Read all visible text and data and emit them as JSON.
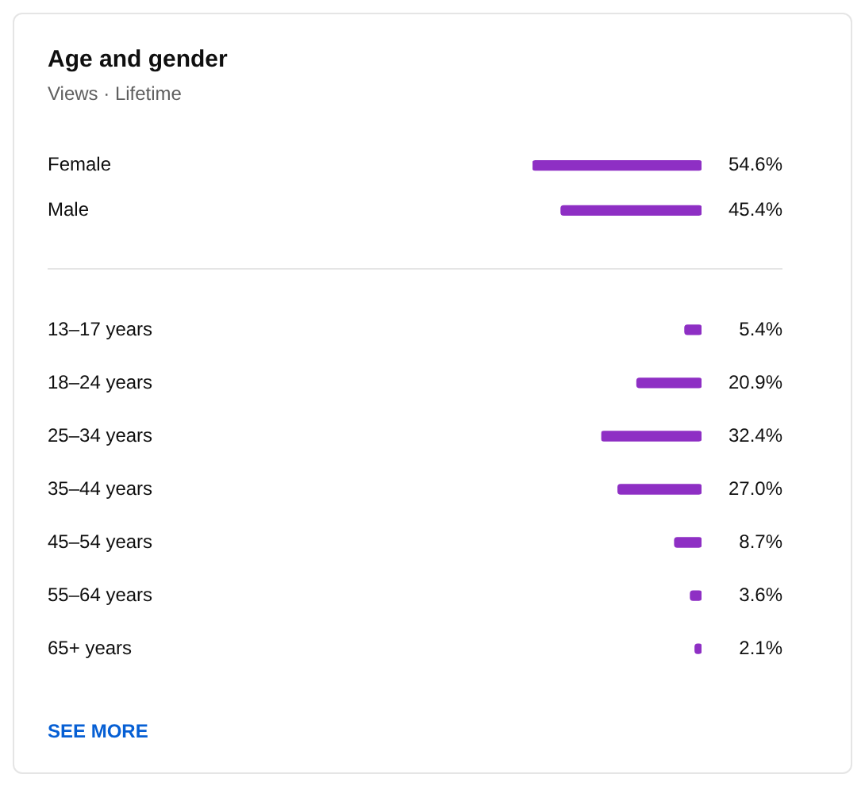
{
  "chart_data": [
    {
      "type": "bar",
      "orientation": "horizontal",
      "title": "Age and gender",
      "subtitle": "Views · Lifetime",
      "categories": [
        "Female",
        "Male"
      ],
      "values": [
        54.6,
        45.4
      ],
      "color": "#8e2fc4",
      "value_labels": [
        "54.6%",
        "45.4%"
      ],
      "tick_labels": "y",
      "grid": false
    },
    {
      "type": "bar",
      "orientation": "horizontal",
      "categories": [
        "13–17 years",
        "18–24 years",
        "25–34 years",
        "35–44 years",
        "45–54 years",
        "55–64 years",
        "65+ years"
      ],
      "values": [
        5.4,
        20.9,
        32.4,
        27.0,
        8.7,
        3.6,
        2.1
      ],
      "color": "#8e2fc4",
      "value_labels": [
        "5.4%",
        "20.9%",
        "32.4%",
        "27.0%",
        "8.7%",
        "3.6%",
        "2.1%"
      ],
      "tick_labels": "y",
      "grid": false,
      "annotations": [
        "SEE MORE"
      ]
    }
  ]
}
